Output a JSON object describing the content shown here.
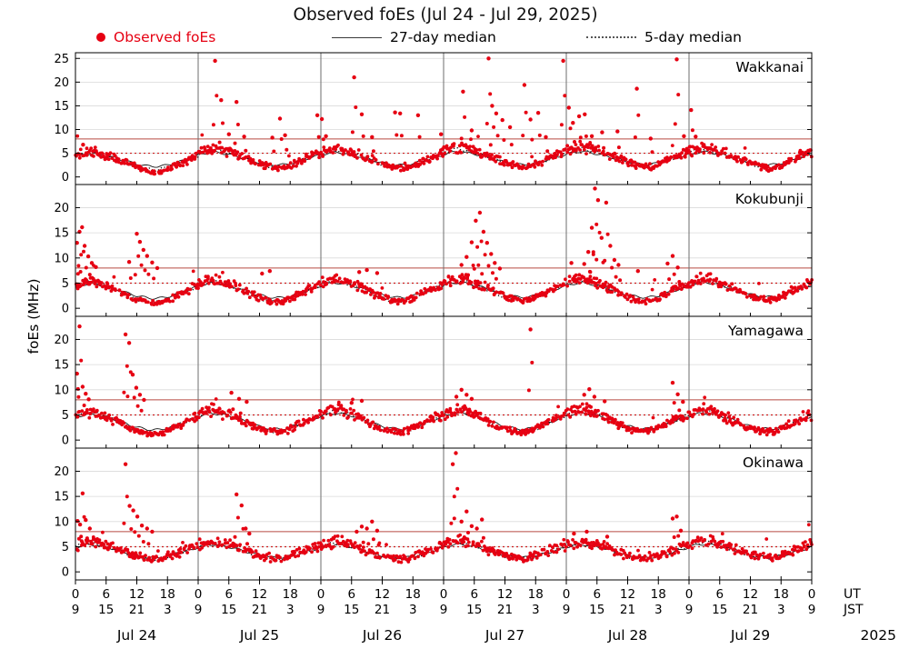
{
  "chart_data": {
    "type": "scatter",
    "title": "Observed foEs (Jul 24 - Jul 29, 2025)",
    "ylabel": "foEs (MHz)",
    "legend": {
      "observed_label": "Observed foEs",
      "median27_label": "27-day median",
      "median5_label": "5-day median"
    },
    "colors": {
      "observed": "#e60012",
      "median27": "#1a1a1a",
      "median5": "#1a1a1a",
      "threshold_solid": "#b84a42",
      "threshold_dotted": "#cc1f1f",
      "grid": "#d9d9d9",
      "day_line": "#6e6e6e",
      "frame": "#000000"
    },
    "x_axis": {
      "total_hours": 144,
      "tick_step_hours": 6,
      "ut_labels": [
        "0",
        "6",
        "12",
        "18",
        "0",
        "6",
        "12",
        "18",
        "0",
        "6",
        "12",
        "18",
        "0",
        "6",
        "12",
        "18",
        "0",
        "6",
        "12",
        "18",
        "0",
        "6",
        "12",
        "18",
        "0"
      ],
      "jst_labels": [
        "9",
        "15",
        "21",
        "3",
        "9",
        "15",
        "21",
        "3",
        "9",
        "15",
        "21",
        "3",
        "9",
        "15",
        "21",
        "3",
        "9",
        "15",
        "21",
        "3",
        "9",
        "15",
        "21",
        "3",
        "9"
      ],
      "ut_unit": "UT",
      "jst_unit": "JST",
      "day_labels": [
        "Jul 24",
        "Jul 25",
        "Jul 26",
        "Jul 27",
        "Jul 28",
        "Jul 29"
      ],
      "year": "2025"
    },
    "panels": [
      {
        "station": "Wakkanai",
        "yticks": [
          0,
          5,
          10,
          15,
          20,
          25
        ],
        "line_solid": 8,
        "line_dotted": 5,
        "observed_diurnal_24h": [
          5.2,
          5.5,
          5.8,
          6.0,
          5.8,
          5.5,
          5.2,
          4.8,
          4.4,
          4.0,
          3.6,
          3.2,
          2.8,
          2.4,
          2.0,
          1.8,
          1.7,
          1.9,
          2.3,
          2.8,
          3.3,
          3.8,
          4.3,
          4.8
        ],
        "median27_24h": [
          4.6,
          4.9,
          5.1,
          5.2,
          5.1,
          4.9,
          4.7,
          4.5,
          4.2,
          3.9,
          3.6,
          3.3,
          3.0,
          2.8,
          2.6,
          2.5,
          2.5,
          2.6,
          2.8,
          3.1,
          3.4,
          3.7,
          4.0,
          4.3
        ],
        "median5_24h": [
          5.0,
          5.3,
          5.6,
          5.7,
          5.5,
          5.2,
          4.9,
          4.6,
          4.2,
          3.8,
          3.4,
          3.0,
          2.6,
          2.3,
          2.1,
          2.0,
          2.0,
          2.2,
          2.5,
          2.9,
          3.3,
          3.7,
          4.2,
          4.6
        ],
        "day_bias": [
          -0.7,
          0.1,
          0,
          0.3,
          0.4,
          0.2
        ],
        "spikes": [
          [
            1.5,
            6.8
          ],
          [
            27.3,
            24.5
          ],
          [
            28.5,
            16.2
          ],
          [
            30,
            9
          ],
          [
            31.5,
            15.8
          ],
          [
            33,
            8.5
          ],
          [
            38.5,
            8.3
          ],
          [
            40,
            12.3
          ],
          [
            41,
            8.8
          ],
          [
            47.3,
            13
          ],
          [
            48.2,
            12.2
          ],
          [
            49,
            8.6
          ],
          [
            54.5,
            21
          ],
          [
            56,
            13.2
          ],
          [
            58,
            8.4
          ],
          [
            62.5,
            13.6
          ],
          [
            63.5,
            13.4
          ],
          [
            67,
            13
          ],
          [
            71.5,
            9
          ],
          [
            75.8,
            18
          ],
          [
            77.5,
            9.8
          ],
          [
            80.8,
            25
          ],
          [
            81.5,
            15
          ],
          [
            82.3,
            13.4
          ],
          [
            83.5,
            12
          ],
          [
            85,
            10.5
          ],
          [
            87.8,
            19.4
          ],
          [
            89,
            12.1
          ],
          [
            90.5,
            13.5
          ],
          [
            92,
            8.4
          ],
          [
            95.4,
            24.5
          ],
          [
            96.5,
            14.6
          ],
          [
            97.3,
            11.4
          ],
          [
            98.5,
            12.8
          ],
          [
            99.6,
            13.2
          ],
          [
            101,
            8.6
          ],
          [
            103,
            9.4
          ],
          [
            106,
            9.6
          ],
          [
            109.8,
            18.6
          ],
          [
            112.5,
            8.1
          ],
          [
            117.6,
            24.8
          ],
          [
            119,
            8.6
          ],
          [
            120.4,
            14.1
          ],
          [
            121.3,
            8.5
          ]
        ]
      },
      {
        "station": "Kokubunji",
        "yticks": [
          0,
          5,
          10,
          15,
          20
        ],
        "line_solid": 8,
        "line_dotted": 5,
        "observed_diurnal_24h": [
          4.8,
          5.2,
          5.5,
          5.6,
          5.4,
          5.1,
          4.8,
          4.4,
          4.0,
          3.5,
          3.0,
          2.5,
          2.1,
          1.8,
          1.5,
          1.3,
          1.3,
          1.5,
          1.9,
          2.4,
          2.9,
          3.4,
          3.9,
          4.4
        ],
        "median27_24h": [
          4.4,
          4.7,
          4.9,
          5.0,
          4.9,
          4.7,
          4.5,
          4.2,
          3.9,
          3.6,
          3.2,
          2.9,
          2.6,
          2.4,
          2.2,
          2.1,
          2.1,
          2.2,
          2.4,
          2.7,
          3.0,
          3.4,
          3.7,
          4.1
        ],
        "median5_24h": [
          4.6,
          5.0,
          5.3,
          5.4,
          5.2,
          4.9,
          4.6,
          4.2,
          3.8,
          3.3,
          2.9,
          2.4,
          2.0,
          1.7,
          1.5,
          1.4,
          1.4,
          1.6,
          2.0,
          2.4,
          2.9,
          3.4,
          3.8,
          4.2
        ],
        "day_bias": [
          -0.3,
          0,
          0.1,
          0.3,
          0.2,
          0.4
        ],
        "spikes": [
          [
            0.3,
            13
          ],
          [
            0.8,
            15.2
          ],
          [
            1.3,
            16.1
          ],
          [
            1.8,
            12.4
          ],
          [
            2.5,
            10.3
          ],
          [
            3.2,
            9
          ],
          [
            4,
            8.2
          ],
          [
            10.5,
            9.2
          ],
          [
            12,
            14.8
          ],
          [
            12.6,
            13.2
          ],
          [
            13.3,
            11.6
          ],
          [
            14,
            10.4
          ],
          [
            15,
            9.1
          ],
          [
            16,
            8
          ],
          [
            36.5,
            6.9
          ],
          [
            38,
            7.4
          ],
          [
            55.5,
            7.2
          ],
          [
            57,
            7.6
          ],
          [
            59,
            7
          ],
          [
            75.5,
            8.6
          ],
          [
            76.5,
            10.2
          ],
          [
            77.5,
            13.1
          ],
          [
            78.3,
            17.4
          ],
          [
            79.1,
            19
          ],
          [
            79.8,
            15.2
          ],
          [
            80.5,
            13
          ],
          [
            81.3,
            10.8
          ],
          [
            82,
            9
          ],
          [
            83,
            7.9
          ],
          [
            97,
            9
          ],
          [
            99.5,
            8.8
          ],
          [
            100.3,
            11.2
          ],
          [
            101,
            16
          ],
          [
            101.6,
            23.8
          ],
          [
            102.2,
            21.5
          ],
          [
            102.9,
            14
          ],
          [
            103.8,
            21
          ],
          [
            104.6,
            12.4
          ],
          [
            105.4,
            9.6
          ],
          [
            106.2,
            8.6
          ],
          [
            110,
            7.4
          ],
          [
            115.8,
            8.9
          ],
          [
            116.8,
            10.4
          ],
          [
            117.8,
            8.1
          ]
        ]
      },
      {
        "station": "Yamagawa",
        "yticks": [
          0,
          5,
          10,
          15,
          20
        ],
        "line_solid": 8,
        "line_dotted": 5,
        "observed_diurnal_24h": [
          5.0,
          5.4,
          5.8,
          6.0,
          5.8,
          5.4,
          5.0,
          4.6,
          4.1,
          3.6,
          3.1,
          2.6,
          2.2,
          1.9,
          1.7,
          1.6,
          1.6,
          1.8,
          2.2,
          2.7,
          3.2,
          3.8,
          4.3,
          4.7
        ],
        "median27_24h": [
          4.7,
          5.0,
          5.2,
          5.3,
          5.2,
          5.0,
          4.8,
          4.5,
          4.2,
          3.8,
          3.4,
          3.0,
          2.7,
          2.5,
          2.3,
          2.2,
          2.2,
          2.3,
          2.6,
          2.9,
          3.2,
          3.6,
          4.0,
          4.4
        ],
        "median5_24h": [
          4.9,
          5.3,
          5.6,
          5.8,
          5.6,
          5.2,
          4.9,
          4.5,
          4.0,
          3.5,
          3.0,
          2.6,
          2.2,
          1.9,
          1.8,
          1.7,
          1.7,
          1.9,
          2.2,
          2.7,
          3.2,
          3.7,
          4.1,
          4.5
        ],
        "day_bias": [
          -0.4,
          0,
          0.1,
          0,
          0.2,
          0.1
        ],
        "spikes": [
          [
            0.3,
            13.2
          ],
          [
            0.8,
            22.6
          ],
          [
            1.4,
            10.6
          ],
          [
            2,
            9.2
          ],
          [
            2.6,
            8.1
          ],
          [
            9.8,
            21
          ],
          [
            10.5,
            19.3
          ],
          [
            11.2,
            13
          ],
          [
            11.9,
            10.4
          ],
          [
            12.6,
            9
          ],
          [
            13.4,
            8
          ],
          [
            30.5,
            9.4
          ],
          [
            32,
            8.2
          ],
          [
            33.5,
            7.6
          ],
          [
            54,
            7.4
          ],
          [
            56,
            7.8
          ],
          [
            74.5,
            8.6
          ],
          [
            75.5,
            10
          ],
          [
            76.5,
            9
          ],
          [
            77.5,
            8.2
          ],
          [
            89,
            22
          ],
          [
            99.5,
            9
          ],
          [
            100.5,
            10.1
          ],
          [
            101.5,
            8.6
          ],
          [
            103.5,
            7.7
          ],
          [
            116.8,
            11.4
          ],
          [
            117.8,
            9.1
          ],
          [
            118.8,
            7.6
          ]
        ]
      },
      {
        "station": "Okinawa",
        "yticks": [
          0,
          5,
          10,
          15,
          20
        ],
        "line_solid": 8,
        "line_dotted": 5,
        "observed_diurnal_24h": [
          5.2,
          5.5,
          5.8,
          5.9,
          5.8,
          5.6,
          5.3,
          5.0,
          4.6,
          4.2,
          3.8,
          3.4,
          3.1,
          2.9,
          2.7,
          2.6,
          2.6,
          2.8,
          3.1,
          3.4,
          3.8,
          4.2,
          4.6,
          4.9
        ],
        "median27_24h": [
          4.9,
          5.1,
          5.3,
          5.4,
          5.3,
          5.1,
          4.9,
          4.7,
          4.4,
          4.1,
          3.8,
          3.5,
          3.2,
          3.0,
          2.9,
          2.8,
          2.8,
          2.9,
          3.1,
          3.3,
          3.6,
          3.9,
          4.2,
          4.5
        ],
        "median5_24h": [
          5.0,
          5.3,
          5.6,
          5.7,
          5.6,
          5.4,
          5.1,
          4.8,
          4.4,
          4.0,
          3.7,
          3.3,
          3.0,
          2.8,
          2.7,
          2.6,
          2.6,
          2.7,
          3.0,
          3.3,
          3.6,
          4.0,
          4.4,
          4.7
        ],
        "day_bias": [
          0,
          0.1,
          0,
          0.2,
          0.1,
          0.3
        ],
        "spikes": [
          [
            0.4,
            10.1
          ],
          [
            0.9,
            9.4
          ],
          [
            1.4,
            15.6
          ],
          [
            2,
            10.3
          ],
          [
            2.8,
            8.6
          ],
          [
            9.8,
            21.4
          ],
          [
            10.6,
            13.1
          ],
          [
            11.3,
            12.2
          ],
          [
            12.1,
            11
          ],
          [
            13,
            9.2
          ],
          [
            14,
            8.6
          ],
          [
            15,
            8
          ],
          [
            31.5,
            15.4
          ],
          [
            32.5,
            13.2
          ],
          [
            33.3,
            8.6
          ],
          [
            34,
            7.6
          ],
          [
            55,
            8
          ],
          [
            56,
            9
          ],
          [
            57,
            8.6
          ],
          [
            58,
            10
          ],
          [
            59,
            8.2
          ],
          [
            73.8,
            21.4
          ],
          [
            74.4,
            23.6
          ],
          [
            75.5,
            10
          ],
          [
            76.5,
            12
          ],
          [
            77.5,
            9.1
          ],
          [
            78.5,
            8.6
          ],
          [
            79.5,
            10.4
          ],
          [
            97.5,
            7.6
          ],
          [
            100,
            8
          ],
          [
            104,
            7
          ],
          [
            116.8,
            10.6
          ],
          [
            117.6,
            11
          ],
          [
            118.4,
            8.2
          ]
        ]
      }
    ]
  }
}
